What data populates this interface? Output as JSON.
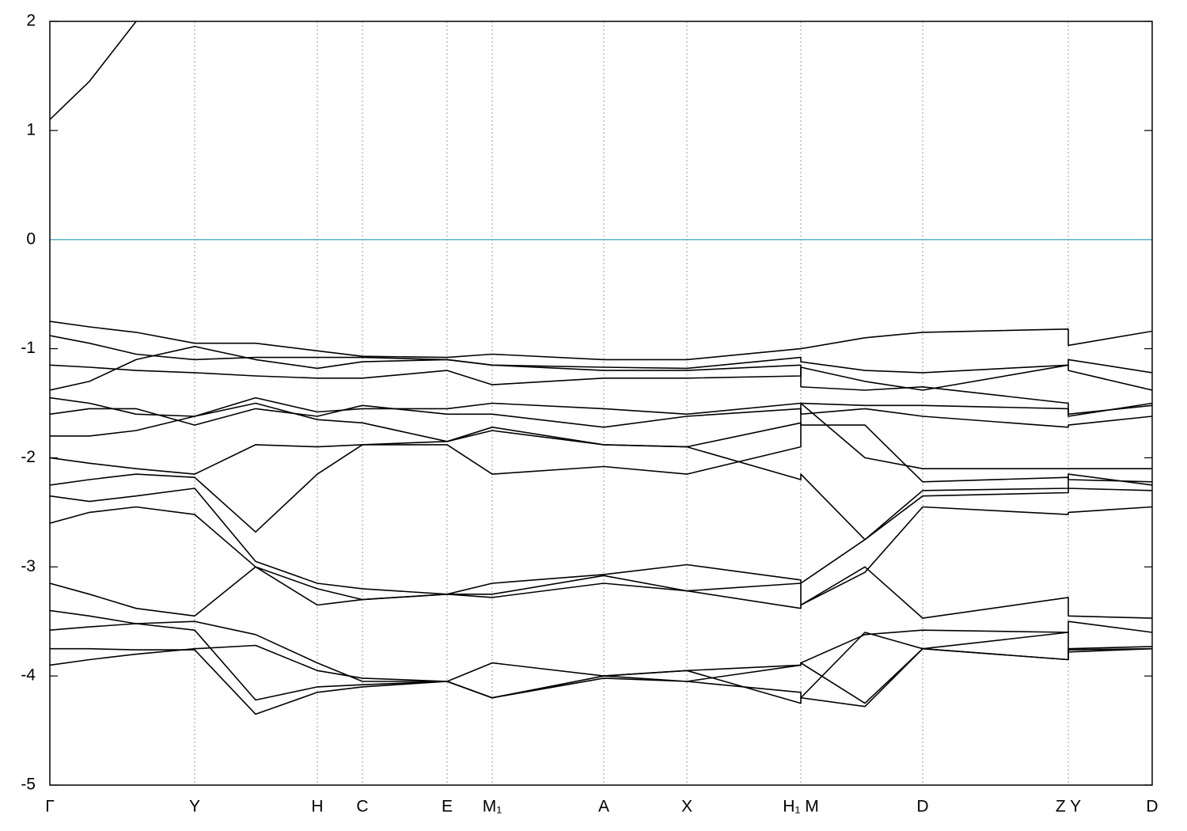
{
  "chart_data": {
    "type": "line",
    "x": [
      0,
      0.5,
      1.09,
      1.83,
      2.6,
      3.38,
      3.95,
      5.02,
      5.59,
      7.0,
      8.05,
      9.49,
      9.49,
      10.3,
      11.03,
      12.87,
      12.87,
      13.93
    ],
    "color": "#000000",
    "series": [
      {
        "color": "#000000",
        "values": [
          1.1,
          1.45,
          2.0,
          null,
          null,
          null,
          null,
          null,
          null,
          null,
          null,
          null,
          null,
          null,
          null,
          null,
          null,
          null
        ]
      },
      {
        "color": "#000000",
        "values": [
          -0.75,
          -0.8,
          -0.85,
          -0.95,
          -0.95,
          -1.02,
          -1.07,
          -1.08,
          -1.05,
          -1.1,
          -1.1,
          -1.0,
          -1.0,
          -0.9,
          -0.85,
          -0.82,
          -0.97,
          -0.84
        ]
      },
      {
        "color": "#000000",
        "values": [
          -0.88,
          -0.95,
          -1.05,
          -1.1,
          -1.08,
          -1.08,
          -1.08,
          -1.1,
          -1.15,
          -1.17,
          -1.18,
          -1.08,
          -1.12,
          -1.2,
          -1.22,
          -1.15,
          -1.1,
          -1.22
        ]
      },
      {
        "color": "#000000",
        "values": [
          -1.15,
          -1.17,
          -1.2,
          -1.22,
          -1.25,
          -1.27,
          -1.27,
          -1.2,
          -1.33,
          -1.27,
          -1.27,
          -1.25,
          -1.17,
          -1.3,
          -1.38,
          -1.15,
          -1.2,
          -1.38
        ]
      },
      {
        "color": "#000000",
        "values": [
          -1.38,
          -1.3,
          -1.1,
          -0.98,
          -1.1,
          -1.18,
          -1.12,
          -1.1,
          -1.15,
          -1.2,
          -1.2,
          -1.15,
          -1.35,
          -1.38,
          -1.35,
          -1.5,
          -1.62,
          -1.5
        ]
      },
      {
        "color": "#000000",
        "values": [
          -1.45,
          -1.5,
          -1.6,
          -1.62,
          -1.45,
          -1.58,
          -1.55,
          -1.55,
          -1.5,
          -1.55,
          -1.6,
          -1.5,
          -1.5,
          -1.52,
          -1.52,
          -1.55,
          -1.6,
          -1.52
        ]
      },
      {
        "color": "#000000",
        "values": [
          -1.6,
          -1.55,
          -1.55,
          -1.7,
          -1.55,
          -1.62,
          -1.52,
          -1.6,
          -1.6,
          -1.72,
          -1.62,
          -1.55,
          -1.6,
          -1.55,
          -1.62,
          -1.72,
          -1.7,
          -1.62
        ]
      },
      {
        "color": "#000000",
        "values": [
          -1.8,
          -1.8,
          -1.75,
          -1.62,
          -1.5,
          -1.65,
          -1.68,
          -1.85,
          -1.72,
          -1.88,
          -1.9,
          -1.68,
          -1.7,
          -1.7,
          -2.22,
          -2.18,
          -2.2,
          -2.22
        ]
      },
      {
        "color": "#000000",
        "values": [
          -2.0,
          -2.05,
          -2.1,
          -2.15,
          -1.88,
          -1.9,
          -1.88,
          -1.88,
          -2.15,
          -2.08,
          -2.15,
          -1.9,
          -1.5,
          -2.0,
          -2.1,
          -2.1,
          -2.1,
          -2.1
        ]
      },
      {
        "color": "#000000",
        "values": [
          -2.25,
          -2.2,
          -2.15,
          -2.18,
          -2.68,
          -2.15,
          -1.88,
          -1.85,
          -1.75,
          -1.88,
          -1.9,
          -2.2,
          -2.15,
          -2.75,
          -2.3,
          -2.28,
          -2.15,
          -2.25
        ]
      },
      {
        "color": "#000000",
        "values": [
          -2.35,
          -2.4,
          -2.35,
          -2.28,
          -2.95,
          -3.15,
          -3.2,
          -3.25,
          -3.15,
          -3.07,
          -2.98,
          -3.12,
          -3.15,
          -2.75,
          -2.35,
          -2.32,
          -2.28,
          -2.3
        ]
      },
      {
        "color": "#000000",
        "values": [
          -2.6,
          -2.5,
          -2.45,
          -2.52,
          -3.0,
          -3.2,
          -3.3,
          -3.25,
          -3.28,
          -3.15,
          -3.22,
          -3.15,
          -3.35,
          -3.05,
          -2.45,
          -2.52,
          -2.5,
          -2.45
        ]
      },
      {
        "color": "#000000",
        "values": [
          -3.15,
          -3.25,
          -3.38,
          -3.45,
          -3.0,
          -3.35,
          -3.3,
          -3.25,
          -3.25,
          -3.08,
          -3.22,
          -3.38,
          -3.35,
          -3.0,
          -3.47,
          -3.28,
          -3.45,
          -3.47
        ]
      },
      {
        "color": "#000000",
        "values": [
          -3.4,
          -3.45,
          -3.52,
          -3.5,
          -3.62,
          -3.88,
          -4.05,
          -4.05,
          -3.88,
          -4.0,
          -3.95,
          -3.9,
          -3.88,
          -3.62,
          -3.58,
          -3.6,
          -3.5,
          -3.6
        ]
      },
      {
        "color": "#000000",
        "values": [
          -3.58,
          -3.55,
          -3.52,
          -3.58,
          -4.22,
          -4.1,
          -4.08,
          -4.05,
          -4.2,
          -4.0,
          -4.05,
          -4.15,
          -4.2,
          -4.28,
          -3.75,
          -3.85,
          -3.75,
          -3.73
        ]
      },
      {
        "color": "#000000",
        "values": [
          -3.75,
          -3.75,
          -3.76,
          -3.76,
          -4.35,
          -4.15,
          -4.1,
          -4.05,
          -4.2,
          -4.0,
          -3.95,
          -4.25,
          -4.2,
          -3.6,
          -3.75,
          -3.6,
          -3.78,
          -3.75
        ]
      },
      {
        "color": "#000000",
        "values": [
          -3.9,
          -3.85,
          -3.8,
          -3.75,
          -3.72,
          -3.95,
          -4.02,
          -4.05,
          -4.2,
          -4.02,
          -4.05,
          -3.9,
          -3.88,
          -4.25,
          -3.75,
          -3.85,
          -3.76,
          -3.75
        ]
      }
    ],
    "xlim": [
      0,
      13.93
    ],
    "ylim": [
      -5,
      2
    ],
    "yticks": [
      -5,
      -4,
      -3,
      -2,
      -1,
      0,
      1,
      2
    ],
    "xticks": [
      {
        "value": 0,
        "label": "Γ"
      },
      {
        "value": 1.83,
        "label": "Y"
      },
      {
        "value": 3.38,
        "label": "H"
      },
      {
        "value": 3.95,
        "label": "C"
      },
      {
        "value": 5.02,
        "label": "E"
      },
      {
        "value": 5.59,
        "label": "M₁"
      },
      {
        "value": 7.0,
        "label": "A"
      },
      {
        "value": 8.05,
        "label": "X"
      },
      {
        "value": 9.49,
        "label": "H₁ M"
      },
      {
        "value": 11.03,
        "label": "D"
      },
      {
        "value": 12.87,
        "label": "Z Y"
      },
      {
        "value": 13.93,
        "label": "D"
      }
    ],
    "grid": true,
    "hline": {
      "value": 0,
      "color": "#5ab4c8"
    }
  }
}
